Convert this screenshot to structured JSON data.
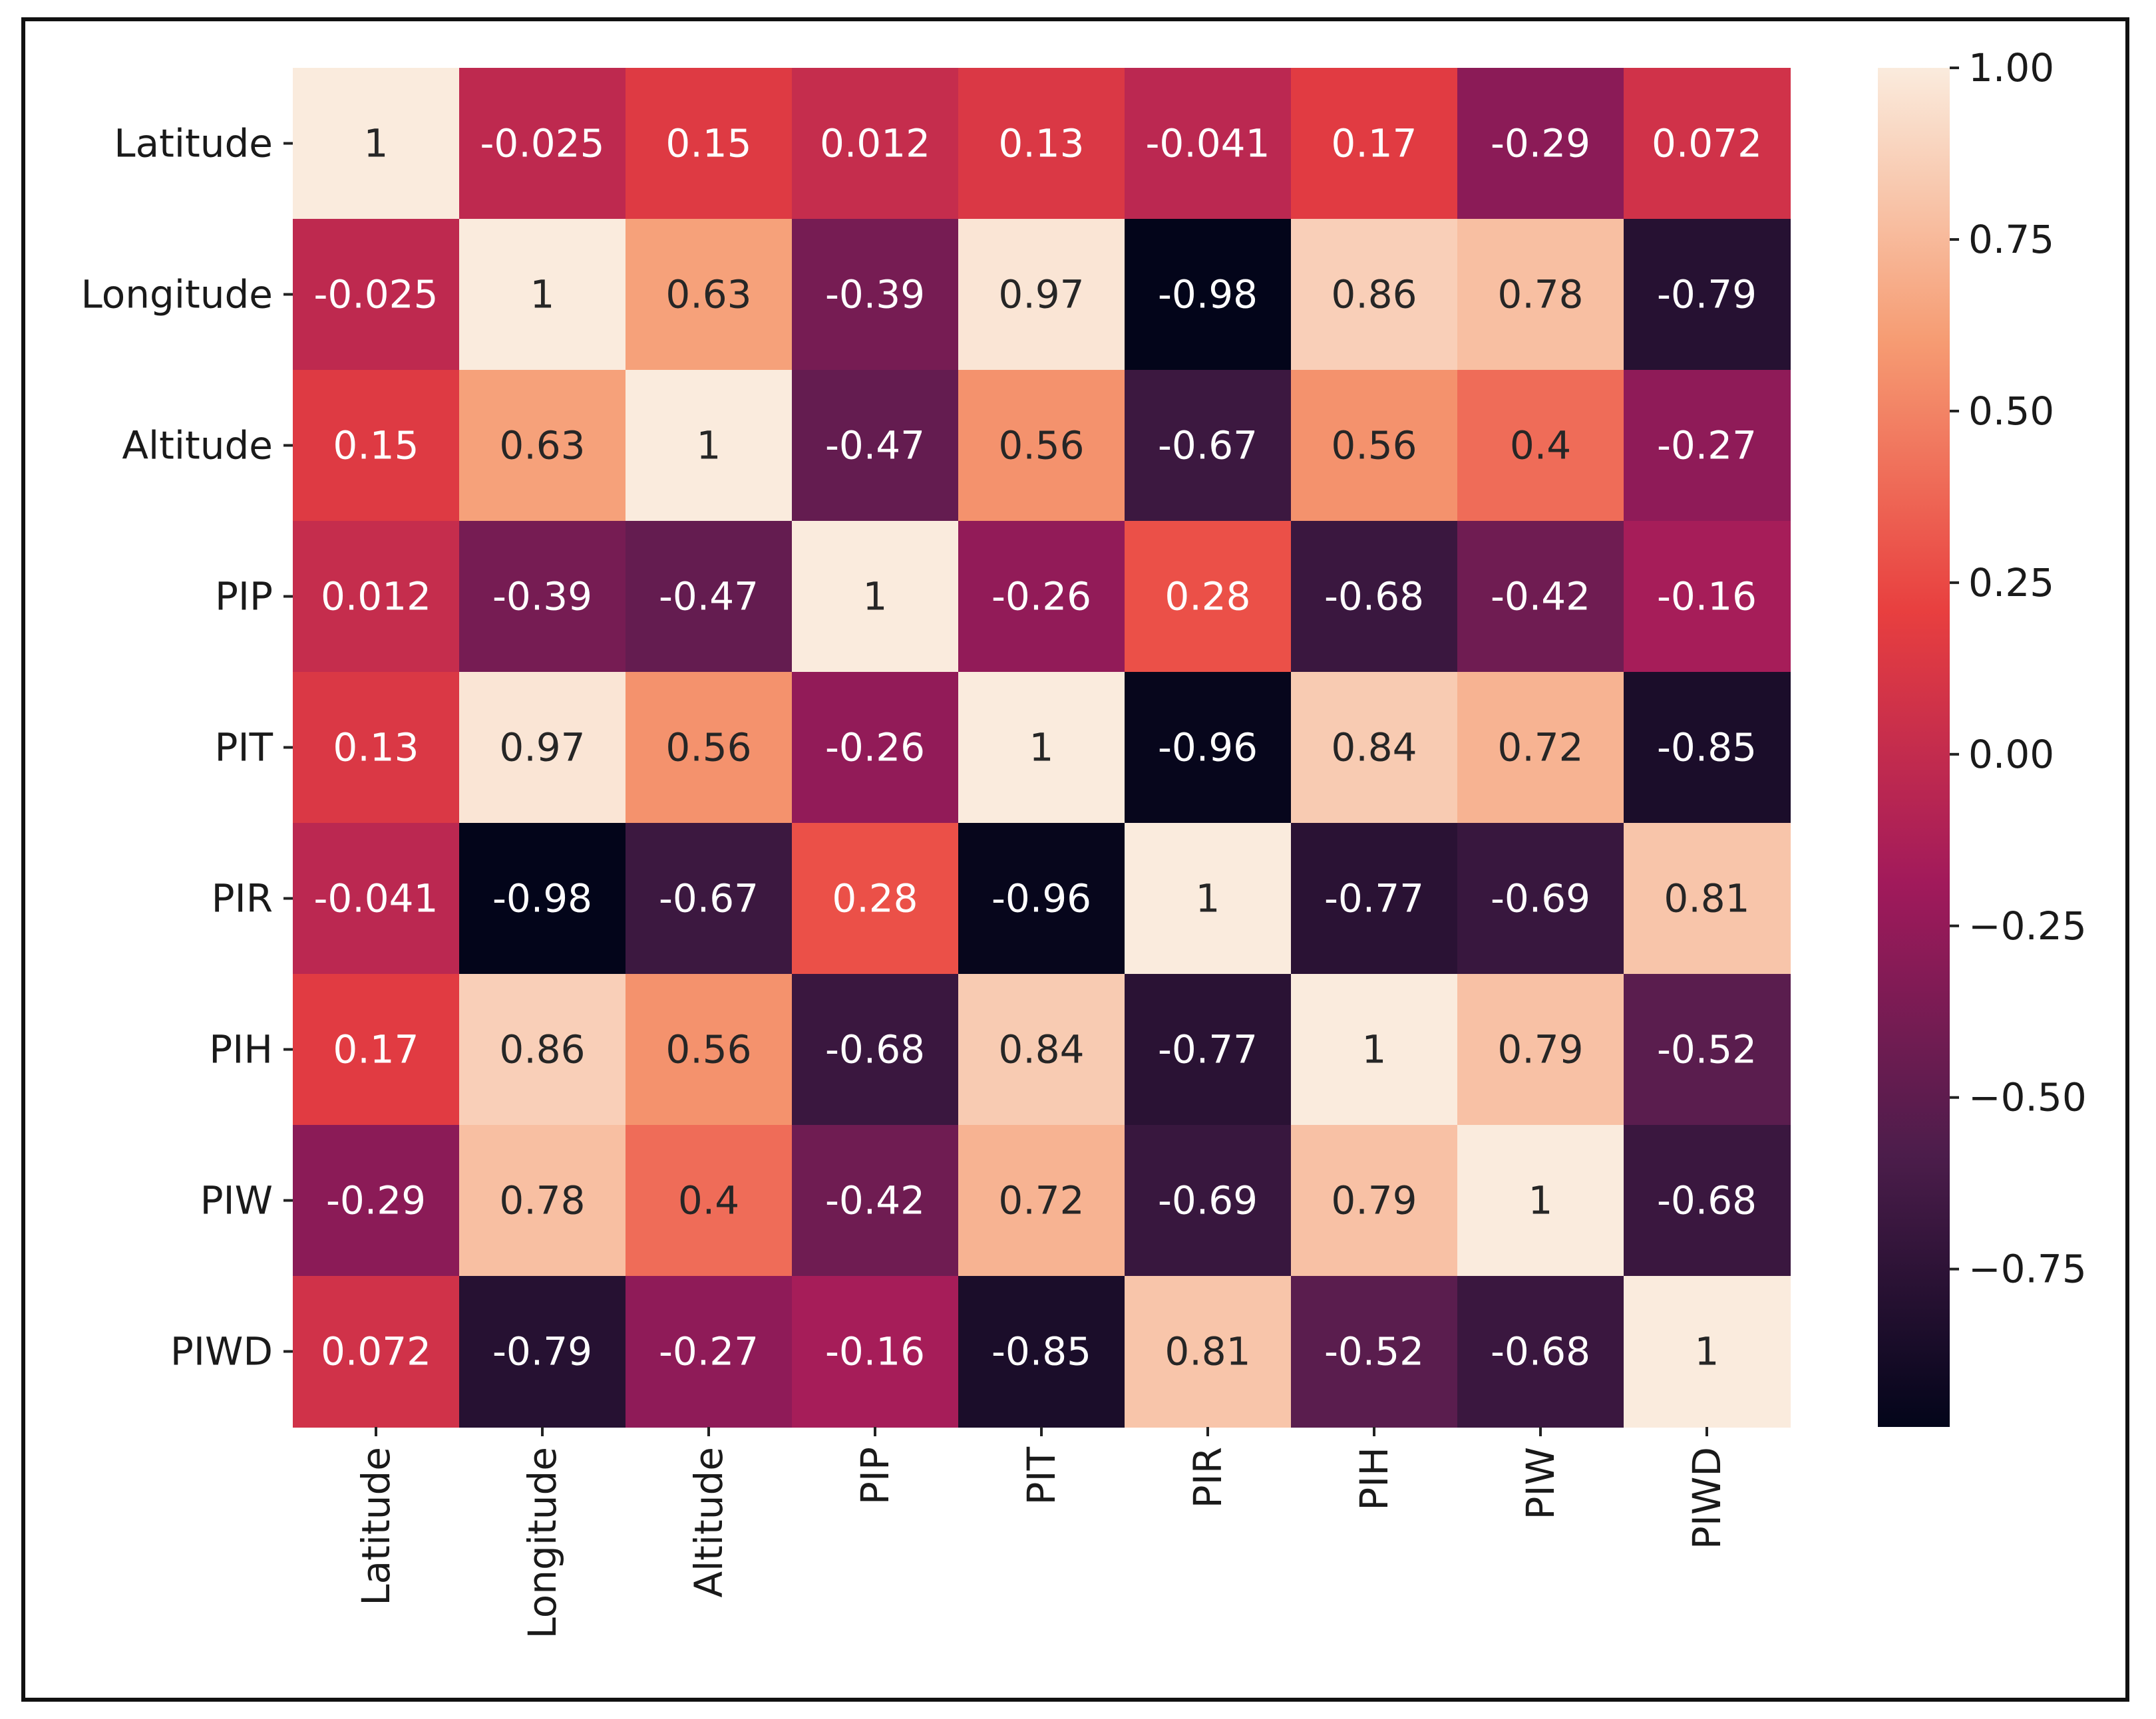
{
  "chart_data": {
    "type": "heatmap",
    "title": "",
    "xlabel": "",
    "ylabel": "",
    "row_labels": [
      "Latitude",
      "Longitude",
      "Altitude",
      "PIP",
      "PIT",
      "PIR",
      "PIH",
      "PIW",
      "PIWD"
    ],
    "col_labels": [
      "Latitude",
      "Longitude",
      "Altitude",
      "PIP",
      "PIT",
      "PIR",
      "PIH",
      "PIW",
      "PIWD"
    ],
    "cell_labels": [
      [
        "1",
        "-0.025",
        "0.15",
        "0.012",
        "0.13",
        "-0.041",
        "0.17",
        "-0.29",
        "0.072"
      ],
      [
        "-0.025",
        "1",
        "0.63",
        "-0.39",
        "0.97",
        "-0.98",
        "0.86",
        "0.78",
        "-0.79"
      ],
      [
        "0.15",
        "0.63",
        "1",
        "-0.47",
        "0.56",
        "-0.67",
        "0.56",
        "0.4",
        "-0.27"
      ],
      [
        "0.012",
        "-0.39",
        "-0.47",
        "1",
        "-0.26",
        "0.28",
        "-0.68",
        "-0.42",
        "-0.16"
      ],
      [
        "0.13",
        "0.97",
        "0.56",
        "-0.26",
        "1",
        "-0.96",
        "0.84",
        "0.72",
        "-0.85"
      ],
      [
        "-0.041",
        "-0.98",
        "-0.67",
        "0.28",
        "-0.96",
        "1",
        "-0.77",
        "-0.69",
        "0.81"
      ],
      [
        "0.17",
        "0.86",
        "0.56",
        "-0.68",
        "0.84",
        "-0.77",
        "1",
        "0.79",
        "-0.52"
      ],
      [
        "-0.29",
        "0.78",
        "0.4",
        "-0.42",
        "0.72",
        "-0.69",
        "0.79",
        "1",
        "-0.68"
      ],
      [
        "0.072",
        "-0.79",
        "-0.27",
        "-0.16",
        "-0.85",
        "0.81",
        "-0.52",
        "-0.68",
        "1"
      ]
    ],
    "colorbar": {
      "range": [
        -0.98,
        1.0
      ],
      "ticks": [
        1.0,
        0.75,
        0.5,
        0.25,
        0.0,
        -0.25,
        -0.5,
        -0.75
      ],
      "tick_labels": [
        "1.00",
        "0.75",
        "0.50",
        "0.25",
        "0.00",
        "−0.25",
        "−0.50",
        "−0.75"
      ],
      "colormap": "rocket",
      "stops": [
        "#03051a",
        "#4c1d4b",
        "#a11a5b",
        "#e83f3f",
        "#f69c73",
        "#faebdd"
      ]
    }
  }
}
